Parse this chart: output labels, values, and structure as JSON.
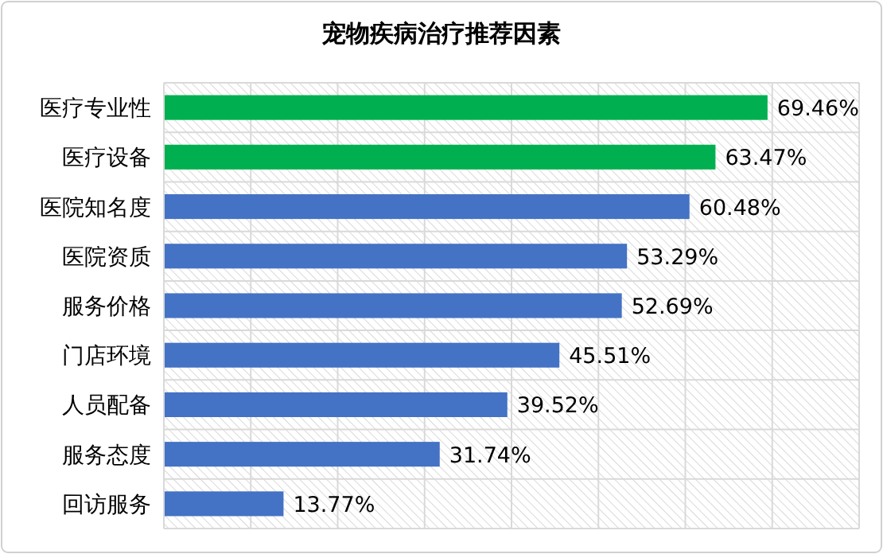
{
  "chart_data": {
    "type": "bar",
    "orientation": "horizontal",
    "title": "宠物疾病治疗推荐因素",
    "categories": [
      "医疗专业性",
      "医疗设备",
      "医院知名度",
      "医院资质",
      "服务价格",
      "门店环境",
      "人员配备",
      "服务态度",
      "回访服务"
    ],
    "values": [
      69.46,
      63.47,
      60.48,
      53.29,
      52.69,
      45.51,
      39.52,
      31.74,
      13.77
    ],
    "value_labels": [
      "69.46%",
      "63.47%",
      "60.48%",
      "53.29%",
      "52.69%",
      "45.51%",
      "39.52%",
      "31.74%",
      "13.77%"
    ],
    "colors": [
      "#00b050",
      "#00b050",
      "#4472c4",
      "#4472c4",
      "#4472c4",
      "#4472c4",
      "#4472c4",
      "#4472c4",
      "#4472c4"
    ],
    "xlim": [
      0,
      80
    ],
    "xticks": [
      {
        "value": 0,
        "label": null
      },
      {
        "value": 10,
        "label": null
      },
      {
        "value": 20,
        "label": null
      },
      {
        "value": 30,
        "label": null
      },
      {
        "value": 40,
        "label": null
      },
      {
        "value": 50,
        "label": null
      },
      {
        "value": 60,
        "label": null
      },
      {
        "value": 70,
        "label": null
      },
      {
        "value": 80,
        "label": null
      }
    ],
    "tick_labels": "y",
    "grid": true
  }
}
